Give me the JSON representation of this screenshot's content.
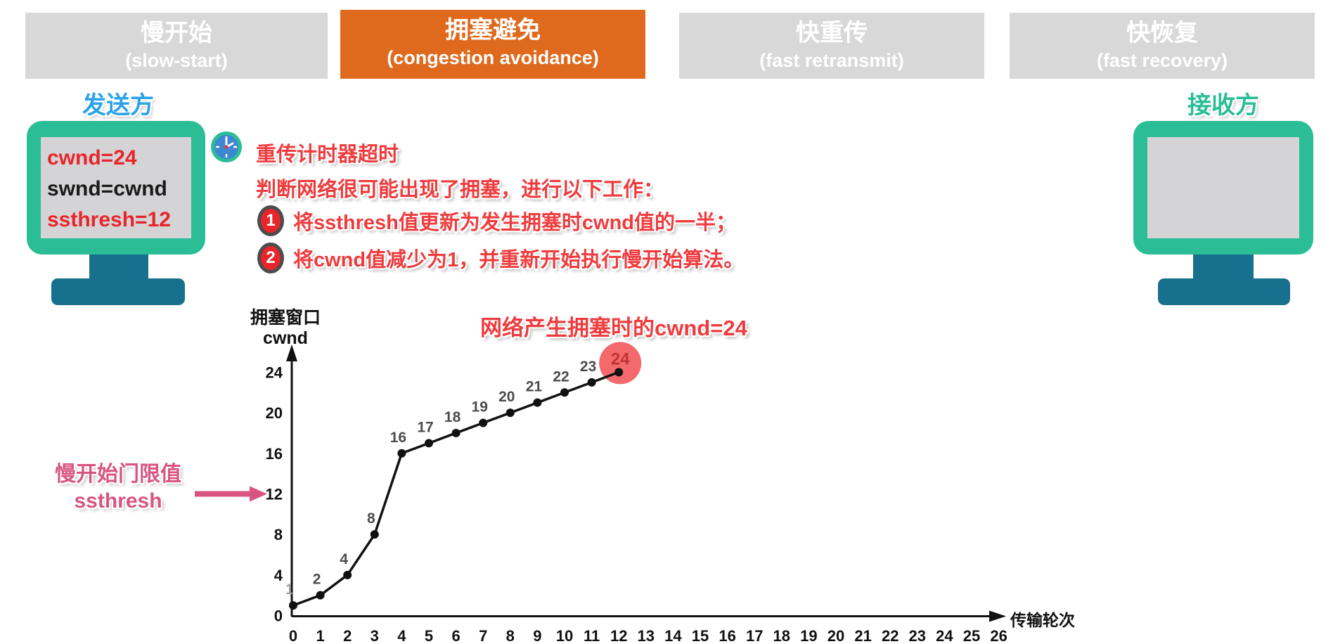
{
  "tabs": [
    {
      "id": "slow-start",
      "zh": "慢开始",
      "en": "(slow-start)",
      "active": false
    },
    {
      "id": "congestion-avoidance",
      "zh": "拥塞避免",
      "en": "(congestion avoidance)",
      "active": true
    },
    {
      "id": "fast-retransmit",
      "zh": "快重传",
      "en": "(fast retransmit)",
      "active": false
    },
    {
      "id": "fast-recovery",
      "zh": "快恢复",
      "en": "(fast recovery)",
      "active": false
    }
  ],
  "sender": {
    "label": "发送方",
    "screen_lines": [
      {
        "text": "cwnd=24",
        "color": "#e8252a"
      },
      {
        "text": "swnd=cwnd",
        "color": "#1a1a1a"
      },
      {
        "text": "ssthresh=12",
        "color": "#e8252a"
      }
    ]
  },
  "receiver": {
    "label": "接收方"
  },
  "notice": {
    "icon": "timer-clock",
    "line1": "重传计时器超时",
    "line2": "判断网络很可能出现了拥塞，进行以下工作：",
    "steps": [
      {
        "num": "1",
        "text": "将ssthresh值更新为发生拥塞时cwnd值的一半；"
      },
      {
        "num": "2",
        "text": "将cwnd值减少为1，并重新开始执行慢开始算法。"
      }
    ]
  },
  "chart_data": {
    "type": "line",
    "x": [
      0,
      1,
      2,
      3,
      4,
      5,
      6,
      7,
      8,
      9,
      10,
      11,
      12
    ],
    "values": [
      1,
      2,
      4,
      8,
      16,
      17,
      18,
      19,
      20,
      21,
      22,
      23,
      24
    ],
    "point_labels": [
      "1",
      "2",
      "4",
      "8",
      "16",
      "17",
      "18",
      "19",
      "20",
      "21",
      "22",
      "23",
      "24"
    ],
    "ylabel_line1": "拥塞窗口",
    "ylabel_line2": "cwnd",
    "xlabel": "传输轮次",
    "yticks": [
      0,
      4,
      8,
      12,
      16,
      20,
      24
    ],
    "xticks": [
      0,
      1,
      2,
      3,
      4,
      5,
      6,
      7,
      8,
      9,
      10,
      11,
      12,
      13,
      14,
      15,
      16,
      17,
      18,
      19,
      20,
      21,
      22,
      23,
      24,
      25,
      26
    ],
    "xlim": [
      0,
      26
    ],
    "ylim": [
      0,
      24
    ],
    "grid": false,
    "annotation": "网络产生拥塞时的cwnd=24",
    "highlight": {
      "x": 12,
      "value": 24,
      "label": "24"
    },
    "threshold": {
      "value": 12,
      "label_line1": "慢开始门限值",
      "label_line2": "ssthresh"
    }
  },
  "colors": {
    "tab_active": "#df6a1e",
    "tab_inactive": "#d8d8d8",
    "teal": "#2abd96",
    "stand": "#16708e",
    "screen": "#d4d4d6",
    "red_text": "#ee3c3e",
    "badge_red": "#e8252a",
    "blue_label": "#2aa3e9",
    "pink": "#d85580",
    "line": "#111111",
    "point_label_gray": "#4b4b4b",
    "highlight_circle": "#f4696b",
    "highlight_text": "#c13434"
  }
}
